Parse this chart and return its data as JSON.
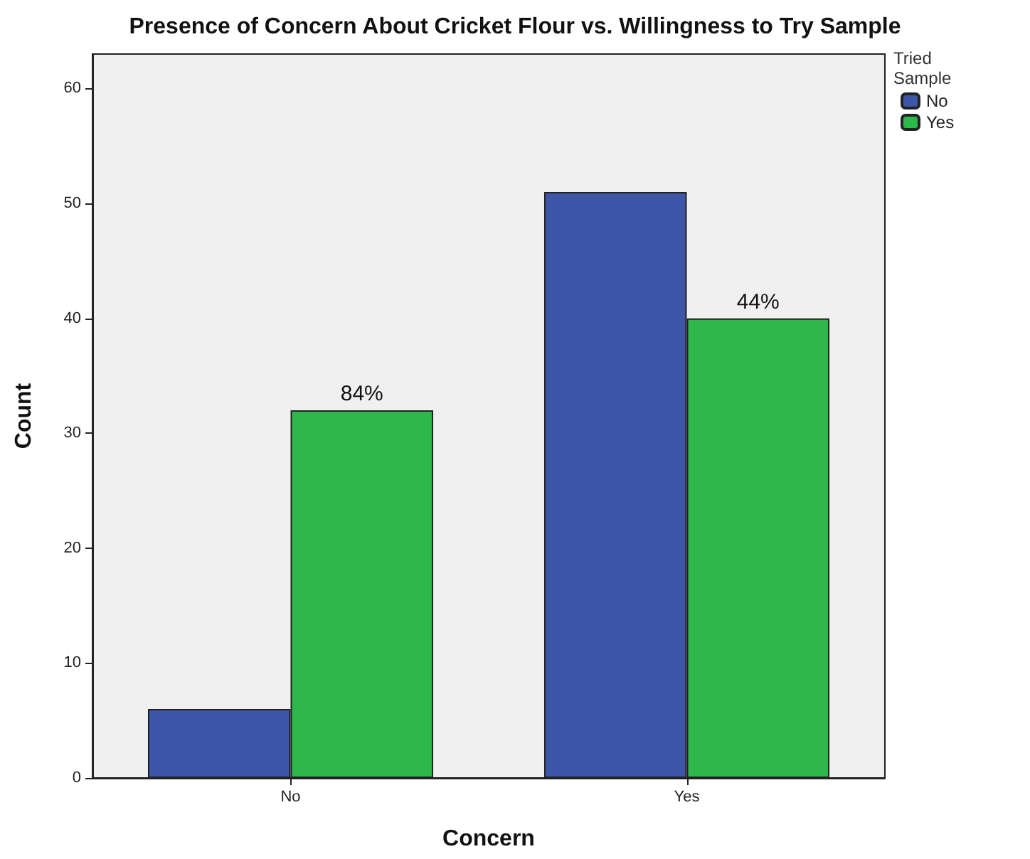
{
  "chart_data": {
    "type": "bar",
    "title": "Presence of Concern About Cricket Flour vs. Willingness to Try Sample",
    "xlabel": "Concern",
    "ylabel": "Count",
    "legend_title": "Tried\nSample",
    "categories": [
      "No",
      "Yes"
    ],
    "series": [
      {
        "name": "No",
        "color": "#3d56a8",
        "values": [
          6,
          51
        ]
      },
      {
        "name": "Yes",
        "color": "#2eb84b",
        "values": [
          32,
          40
        ]
      }
    ],
    "annotations": [
      {
        "text": "84%",
        "x": "No",
        "y": 32
      },
      {
        "text": "44%",
        "x": "Yes",
        "y": 40
      }
    ],
    "ylim": [
      0,
      63
    ],
    "yticks": [
      0,
      10,
      20,
      30,
      40,
      50,
      60
    ],
    "grid": false,
    "legend": "top right"
  }
}
